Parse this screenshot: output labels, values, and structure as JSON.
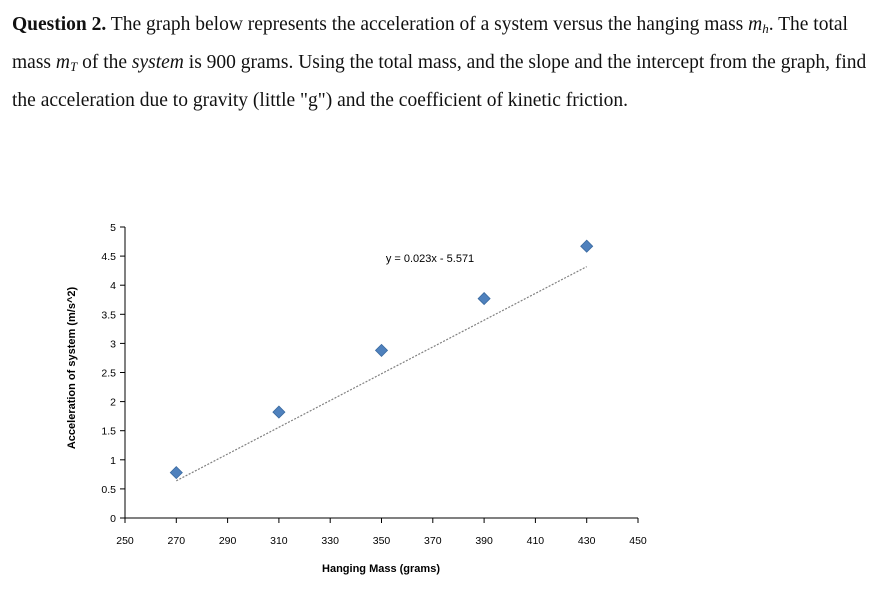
{
  "question": {
    "label": "Question 2.",
    "text_part1": " The graph below represents the acceleration of a system versus the hanging mass ",
    "mass_h_symbol": "m",
    "mass_h_subscript": "h",
    "text_part2": ". The total mass ",
    "mass_t_symbol": "m",
    "mass_t_subscript": "T",
    "text_part3": " of the ",
    "system_word": "system",
    "text_part4": " is 900 grams. Using the total mass, and the slope and the intercept from the graph, find the acceleration due to gravity (little \"g\") and the coefficient of kinetic friction."
  },
  "chart_data": {
    "type": "scatter",
    "xlabel": "Hanging Mass (grams)",
    "ylabel": "Acceleration of system (m/s^2)",
    "xlim": [
      250,
      450
    ],
    "ylim": [
      0,
      5
    ],
    "x_ticks": [
      250,
      270,
      290,
      310,
      330,
      350,
      370,
      390,
      410,
      430,
      450
    ],
    "y_ticks": [
      0,
      0.5,
      1,
      1.5,
      2,
      2.5,
      3,
      3.5,
      4,
      4.5,
      5
    ],
    "x_tick_labels": [
      "250",
      "270",
      "290",
      "310",
      "330",
      "350",
      "370",
      "390",
      "410",
      "430",
      "450"
    ],
    "y_tick_labels": [
      "0",
      "0.5",
      "1",
      "1.5",
      "2",
      "2.5",
      "3",
      "3.5",
      "4",
      "4.5",
      "5"
    ],
    "grid": false,
    "series": [
      {
        "x": [
          270,
          310,
          350,
          390,
          430
        ],
        "y": [
          0.78,
          1.82,
          2.88,
          3.77,
          4.67
        ],
        "marker": "diamond",
        "color": "#4f81bd"
      }
    ],
    "trendline": {
      "slope": 0.023,
      "intercept": -5.571,
      "equation": "y = 0.023x - 5.571",
      "style": "dotted",
      "color": "#808080"
    }
  }
}
